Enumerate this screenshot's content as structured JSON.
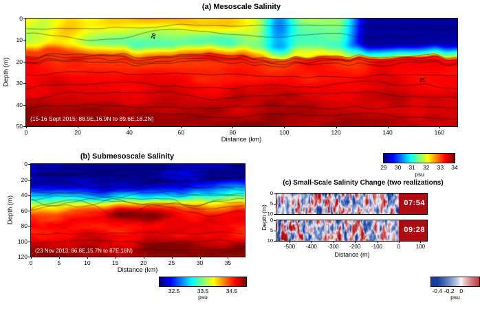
{
  "colors": {
    "background": "#ffffff",
    "saturated_red": "#ad0a12",
    "annotation_text": "#ffffff"
  },
  "panels": {
    "a": {
      "title": "(a) Mesoscale Salinity",
      "xlabel": "Distance (km)",
      "ylabel": "Depth (m)",
      "annotation": "(15-16 Sept 2015; 88.9E,16.9N to 89.6E,18.2N)",
      "contour_labels": [
        {
          "text": "20"
        },
        {
          "text": "21"
        }
      ],
      "colorbar_label": "psu"
    },
    "b": {
      "title": "(b) Submesoscale Salinity",
      "xlabel": "Distance (km)",
      "ylabel": "Depth (m)",
      "annotation": "(23 Nov 2013, 86.8E,15.7N to 87E,16N)",
      "colorbar_label": "psu"
    },
    "c": {
      "title": "(c) Small-Scale Salinity Change (two realizations)",
      "xlabel": "Distance (m)",
      "ylabel": "Depth (m)",
      "strips": [
        {
          "time": "07:54"
        },
        {
          "time": "09:28"
        }
      ],
      "colorbar_label": "psu"
    }
  },
  "chart_data": [
    {
      "id": "a",
      "type": "heatmap",
      "title": "(a) Mesoscale Salinity",
      "xlabel": "Distance (km)",
      "ylabel": "Depth (m)",
      "xlim": [
        0,
        167
      ],
      "depth_lim": [
        0,
        50
      ],
      "xticks": [
        0,
        20,
        40,
        60,
        80,
        100,
        120,
        140,
        160
      ],
      "yticks": [
        0,
        10,
        20,
        30,
        40,
        50
      ],
      "colormap": "jet",
      "colorbar": {
        "range": [
          29,
          34
        ],
        "ticks": [
          29,
          30,
          31,
          32,
          33,
          34
        ],
        "label": "psu"
      },
      "annotation": "(15-16 Sept 2015; 88.9E,16.9N to 89.6E,18.2N)",
      "contour_labels": [
        "20",
        "21"
      ],
      "features": {
        "surface_salinity_psu_range": [
          29,
          33
        ],
        "deep_salinity_psu_range": [
          33.5,
          34
        ],
        "halocline_depth_m": 20,
        "fresh_blue_surface_region_km": [
          120,
          167
        ]
      }
    },
    {
      "id": "b",
      "type": "heatmap",
      "title": "(b) Submesoscale Salinity",
      "xlabel": "Distance (km)",
      "ylabel": "Depth (m)",
      "xlim": [
        0,
        38
      ],
      "depth_lim": [
        0,
        120
      ],
      "xticks": [
        0,
        5,
        10,
        15,
        20,
        25,
        30,
        35
      ],
      "yticks": [
        0,
        20,
        40,
        60,
        80,
        100,
        120
      ],
      "colormap": "jet",
      "colorbar": {
        "range": [
          32,
          35
        ],
        "ticks": [
          32.5,
          33.5,
          34.5
        ],
        "label": "psu"
      },
      "annotation": "(23 Nov 2013, 86.8E,15.7N to 87E,16N)",
      "features": {
        "surface_salinity_psu": 32.5,
        "deep_salinity_psu": 34.5,
        "halocline_depth_m": 50,
        "warm_lens_depth_m": [
          45,
          70
        ]
      }
    },
    {
      "id": "c",
      "type": "heatmap",
      "title": "(c) Small-Scale Salinity Change (two realizations)",
      "xlabel": "Distance (m)",
      "ylabel": "Depth (m)",
      "xlim": [
        -560,
        130
      ],
      "depth_lim": [
        0,
        10
      ],
      "xticks": [
        -500,
        -400,
        -300,
        -200,
        -100,
        0,
        100
      ],
      "yticks": [
        0,
        5,
        10
      ],
      "strips": [
        {
          "label": "07:54"
        },
        {
          "label": "09:28"
        }
      ],
      "colormap": "diverging blue-white-red",
      "colorbar": {
        "range": [
          -0.5,
          0.3
        ],
        "ticks": [
          -0.4,
          -0.2,
          0
        ],
        "label": "psu"
      },
      "features": {
        "saturated_region_m": [
          0,
          130
        ],
        "streak_amplitude_psu": 0.4
      }
    }
  ]
}
